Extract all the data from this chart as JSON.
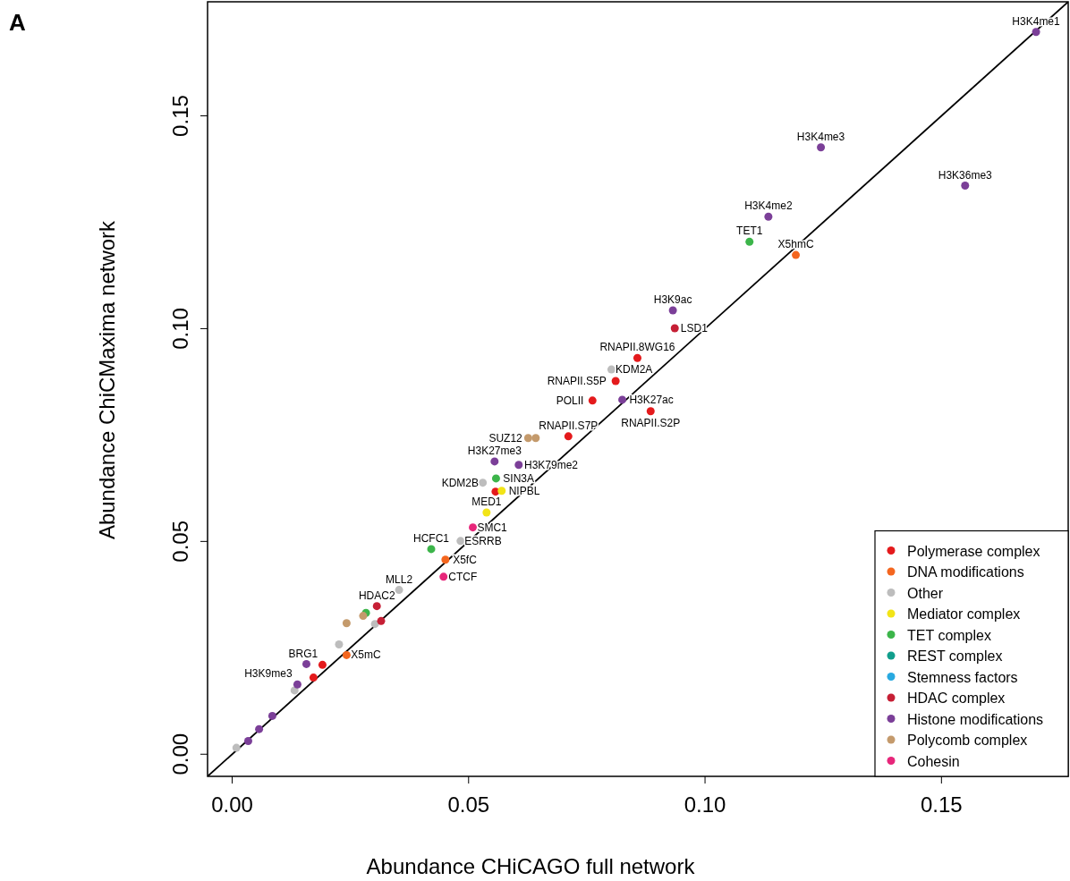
{
  "chart_data": {
    "type": "scatter",
    "title": "A",
    "xlabel": "Abundance CHiCAGO full network",
    "ylabel": "Abundance ChiCMaxima network",
    "xlim": [
      -0.0052,
      0.1768
    ],
    "ylim": [
      -0.0052,
      0.1768
    ],
    "xticks": [
      {
        "value": 0,
        "label": "0.00"
      },
      {
        "value": 0.05,
        "label": "0.05"
      },
      {
        "value": 0.1,
        "label": "0.10"
      },
      {
        "value": 0.15,
        "label": "0.15"
      }
    ],
    "yticks": [
      {
        "value": 0,
        "label": "0.00"
      },
      {
        "value": 0.05,
        "label": "0.05"
      },
      {
        "value": 0.1,
        "label": "0.10"
      },
      {
        "value": 0.15,
        "label": "0.15"
      }
    ],
    "marker": "circle",
    "legend": "bottom right",
    "grid": false,
    "series": [
      {
        "type": "line",
        "color": "#000000",
        "marker": "none",
        "x": [
          -0.0052,
          0.1768
        ],
        "values": [
          -0.0052,
          0.1768
        ]
      },
      {
        "name": "Polymerase complex",
        "color": "#e41a1c",
        "x": [
          0.0857,
          0.0811,
          0.0762,
          0.0885,
          0.0711,
          0.0557,
          0.0191,
          0.0172
        ],
        "values": [
          0.0931,
          0.0877,
          0.0831,
          0.0806,
          0.0747,
          0.0617,
          0.021,
          0.018
        ]
      },
      {
        "name": "DNA modifications",
        "color": "#f4661f",
        "x": [
          0.1192,
          0.0451,
          0.0242
        ],
        "values": [
          0.1173,
          0.0457,
          0.0233
        ]
      },
      {
        "name": "Other",
        "color": "#bdbdbd",
        "x": [
          0.0802,
          0.053,
          0.0483,
          0.0353,
          0.0302,
          0.0226,
          0.0132,
          0.0009
        ],
        "values": [
          0.0904,
          0.0638,
          0.0501,
          0.0386,
          0.0306,
          0.0258,
          0.015,
          0.0015
        ]
      },
      {
        "name": "Mediator complex",
        "color": "#f2e417",
        "x": [
          0.057,
          0.0538
        ],
        "values": [
          0.0619,
          0.0568
        ]
      },
      {
        "name": "TET complex",
        "color": "#3cb54a",
        "x": [
          0.1094,
          0.0558,
          0.0421,
          0.0283
        ],
        "values": [
          0.1204,
          0.0648,
          0.0482,
          0.0332
        ]
      },
      {
        "name": "REST complex",
        "color": "#119e8c"
      },
      {
        "name": "Stemness factors",
        "color": "#28a9e0"
      },
      {
        "name": "HDAC complex",
        "color": "#c61f35",
        "x": [
          0.0936,
          0.0306,
          0.0315
        ],
        "values": [
          0.1001,
          0.0348,
          0.0313
        ]
      },
      {
        "name": "Histone modifications",
        "color": "#7b3f98",
        "x": [
          0.17,
          0.1245,
          0.155,
          0.1134,
          0.0932,
          0.0825,
          0.0555,
          0.0606,
          0.0157,
          0.0138,
          0.0085,
          0.0057,
          0.0034
        ],
        "values": [
          0.1697,
          0.1426,
          0.1336,
          0.1263,
          0.1043,
          0.0833,
          0.0688,
          0.068,
          0.0212,
          0.0164,
          0.009,
          0.0059,
          0.0031
        ]
      },
      {
        "name": "Polycomb complex",
        "color": "#c49a6c",
        "x": [
          0.0626,
          0.0642,
          0.0277,
          0.0242
        ],
        "values": [
          0.0743,
          0.0743,
          0.0325,
          0.0308
        ]
      },
      {
        "name": "Cohesin",
        "color": "#e7267a",
        "x": [
          0.0447,
          0.0509
        ],
        "values": [
          0.0417,
          0.0533
        ]
      }
    ],
    "annotations": [
      {
        "text": "H3K4me1",
        "x": 0.17,
        "y": 0.1697
      },
      {
        "text": "H3K4me3",
        "x": 0.1245,
        "y": 0.1426
      },
      {
        "text": "H3K36me3",
        "x": 0.155,
        "y": 0.1336
      },
      {
        "text": "H3K4me2",
        "x": 0.1134,
        "y": 0.1263
      },
      {
        "text": "TET1",
        "x": 0.1094,
        "y": 0.1204
      },
      {
        "text": "X5hmC",
        "x": 0.1192,
        "y": 0.1173
      },
      {
        "text": "H3K9ac",
        "x": 0.0932,
        "y": 0.1043
      },
      {
        "text": "LSD1",
        "x": 0.0936,
        "y": 0.1001
      },
      {
        "text": "RNAPII.8WG16",
        "x": 0.0857,
        "y": 0.0931
      },
      {
        "text": "KDM2A",
        "x": 0.0802,
        "y": 0.0904
      },
      {
        "text": "RNAPII.S5P",
        "x": 0.0811,
        "y": 0.0877
      },
      {
        "text": "POLII",
        "x": 0.0762,
        "y": 0.0831
      },
      {
        "text": "H3K27ac",
        "x": 0.0825,
        "y": 0.0833
      },
      {
        "text": "RNAPII.S2P",
        "x": 0.0885,
        "y": 0.0806
      },
      {
        "text": "RNAPII.S7P",
        "x": 0.0711,
        "y": 0.0747
      },
      {
        "text": "SUZ12",
        "x": 0.0626,
        "y": 0.0743
      },
      {
        "text": "H3K27me3",
        "x": 0.0555,
        "y": 0.0688
      },
      {
        "text": "H3K79me2",
        "x": 0.0606,
        "y": 0.068
      },
      {
        "text": "SIN3A",
        "x": 0.0558,
        "y": 0.0648
      },
      {
        "text": "KDM2B",
        "x": 0.053,
        "y": 0.0638
      },
      {
        "text": "NIPBL",
        "x": 0.057,
        "y": 0.0619
      },
      {
        "text": "MED1",
        "x": 0.0538,
        "y": 0.0568
      },
      {
        "text": "SMC1",
        "x": 0.0509,
        "y": 0.0533
      },
      {
        "text": "ESRRB",
        "x": 0.0483,
        "y": 0.0501
      },
      {
        "text": "HCFC1",
        "x": 0.0421,
        "y": 0.0482
      },
      {
        "text": "X5fC",
        "x": 0.0451,
        "y": 0.0457
      },
      {
        "text": "CTCF",
        "x": 0.0447,
        "y": 0.0417
      },
      {
        "text": "MLL2",
        "x": 0.0353,
        "y": 0.0386
      },
      {
        "text": "HDAC2",
        "x": 0.0306,
        "y": 0.0348
      },
      {
        "text": "X5mC",
        "x": 0.0242,
        "y": 0.0233
      },
      {
        "text": "BRG1",
        "x": 0.0191,
        "y": 0.021
      },
      {
        "text": "H3K9me3",
        "x": 0.0138,
        "y": 0.0164
      }
    ]
  }
}
